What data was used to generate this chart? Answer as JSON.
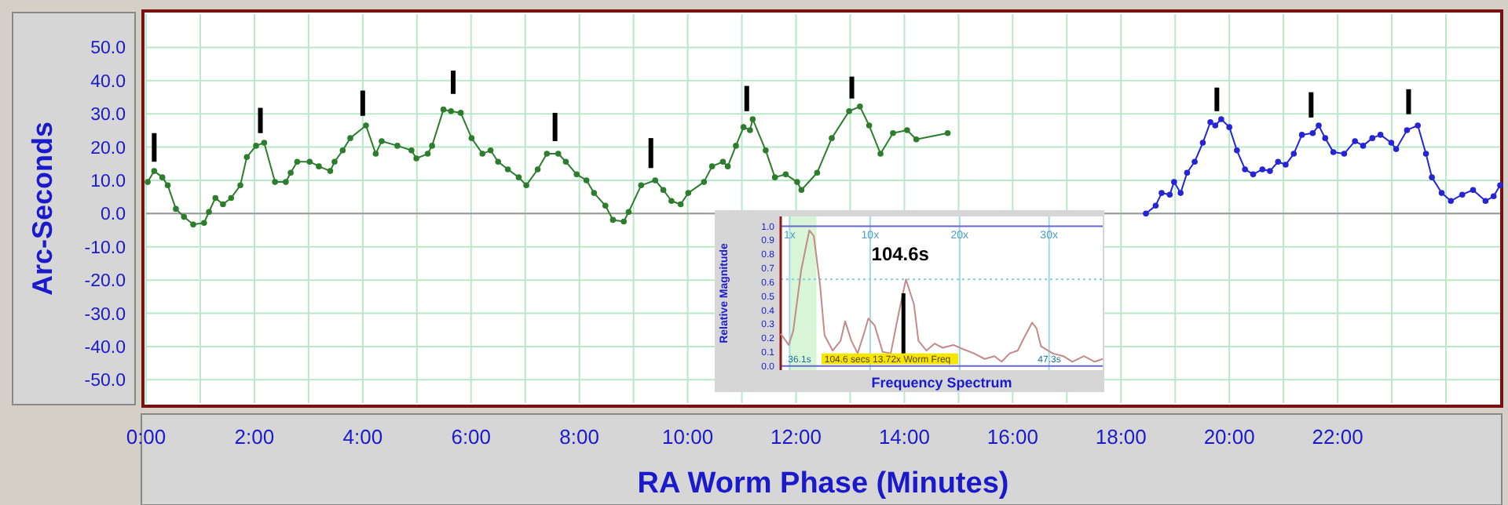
{
  "chart_data": [
    {
      "type": "line",
      "xlabel": "RA Worm Phase (Minutes)",
      "ylabel": "Arc-Seconds",
      "xlim": [
        0,
        25
      ],
      "ylim": [
        -57,
        60
      ],
      "xticks": [
        {
          "value": 0,
          "label": "0:00"
        },
        {
          "value": 1,
          "label": null
        },
        {
          "value": 2,
          "label": "2:00"
        },
        {
          "value": 3,
          "label": null
        },
        {
          "value": 4,
          "label": "4:00"
        },
        {
          "value": 5,
          "label": null
        },
        {
          "value": 6,
          "label": "6:00"
        },
        {
          "value": 7,
          "label": null
        },
        {
          "value": 8,
          "label": "8:00"
        },
        {
          "value": 9,
          "label": null
        },
        {
          "value": 10,
          "label": "10:00"
        },
        {
          "value": 11,
          "label": null
        },
        {
          "value": 12,
          "label": "12:00"
        },
        {
          "value": 13,
          "label": null
        },
        {
          "value": 14,
          "label": "14:00"
        },
        {
          "value": 15,
          "label": null
        },
        {
          "value": 16,
          "label": "16:00"
        },
        {
          "value": 17,
          "label": null
        },
        {
          "value": 18,
          "label": "18:00"
        },
        {
          "value": 19,
          "label": null
        },
        {
          "value": 20,
          "label": "20:00"
        },
        {
          "value": 21,
          "label": null
        },
        {
          "value": 22,
          "label": "22:00"
        },
        {
          "value": 23,
          "label": null
        },
        {
          "value": 24,
          "label": null
        }
      ],
      "yticks": [
        {
          "value": -50,
          "label": "-50.0"
        },
        {
          "value": -40,
          "label": "-40.0"
        },
        {
          "value": -30,
          "label": "-30.0"
        },
        {
          "value": -20,
          "label": "-20.0"
        },
        {
          "value": -10,
          "label": "-10.0"
        },
        {
          "value": 0,
          "label": "0.0"
        },
        {
          "value": 10,
          "label": "10.0"
        },
        {
          "value": 20,
          "label": "20.0"
        },
        {
          "value": 30,
          "label": "30.0"
        },
        {
          "value": 40,
          "label": "40.0"
        },
        {
          "value": 50,
          "label": "50.0"
        }
      ],
      "grid": true,
      "marker": "circle",
      "ref_lines": [
        {
          "axis": "y",
          "value": 0,
          "color": "#999999"
        }
      ],
      "series": [
        {
          "color": "#2e7d2e",
          "x": [
            0.03,
            0.15,
            0.3,
            0.4,
            0.55,
            0.7,
            0.87,
            1.07,
            1.16,
            1.28,
            1.42,
            1.57,
            1.74,
            1.86,
            2.03,
            2.18,
            2.38,
            2.58,
            2.67,
            2.79,
            3.02,
            3.19,
            3.4,
            3.48,
            3.63,
            3.77,
            4.06,
            4.24,
            4.35,
            4.64,
            4.9,
            4.99,
            5.2,
            5.28,
            5.49,
            5.63,
            5.81,
            6.01,
            6.21,
            6.36,
            6.5,
            6.68,
            6.88,
            7.02,
            7.23,
            7.4,
            7.61,
            7.75,
            7.95,
            8.13,
            8.27,
            8.48,
            8.62,
            8.82,
            8.91,
            9.14,
            9.4,
            9.55,
            9.7,
            9.87,
            10.01,
            10.3,
            10.45,
            10.65,
            10.74,
            10.89,
            11.03,
            11.15,
            11.2,
            11.44,
            11.61,
            11.81,
            12.02,
            12.1,
            12.39,
            12.66,
            12.98,
            13.18,
            13.35,
            13.56,
            13.79,
            14.05,
            14.22,
            14.8
          ],
          "values": [
            9.5,
            12.8,
            10.9,
            8.5,
            1.4,
            -1,
            -3.3,
            -2.8,
            0.5,
            4.7,
            2.8,
            4.7,
            8.5,
            17,
            20.4,
            21.3,
            9.5,
            9.5,
            12.3,
            15.6,
            15.6,
            14.2,
            12.8,
            15.6,
            19,
            22.7,
            26.5,
            18,
            21.8,
            20.4,
            19,
            16.6,
            18,
            20.4,
            31.3,
            30.8,
            30.3,
            22.7,
            18,
            19,
            15.6,
            13.3,
            10.9,
            8.5,
            13.3,
            18,
            18,
            15.6,
            11.8,
            10,
            6.2,
            2.4,
            -1.9,
            -2.4,
            0.5,
            8.5,
            10,
            7.1,
            3.8,
            2.8,
            6.2,
            9.5,
            14.2,
            15.6,
            14.2,
            20.4,
            26,
            25.1,
            28.4,
            19,
            10.9,
            11.8,
            9.5,
            7.1,
            12.3,
            22.7,
            30.8,
            32.2,
            26.5,
            18,
            24.2,
            25.1,
            22.3,
            24.2
          ]
        },
        {
          "color": "#2525d5",
          "x": [
            18.46,
            18.64,
            18.75,
            18.9,
            18.98,
            19.1,
            19.22,
            19.36,
            19.51,
            19.65,
            19.74,
            19.85,
            20.0,
            20.14,
            20.29,
            20.44,
            20.61,
            20.75,
            20.9,
            21.04,
            21.19,
            21.34,
            21.54,
            21.65,
            21.77,
            21.92,
            22.12,
            22.32,
            22.47,
            22.64,
            22.79,
            22.99,
            23.08,
            23.28,
            23.48,
            23.63,
            23.74,
            23.92,
            24.09,
            24.3,
            24.5,
            24.73,
            24.88,
            25.0
          ],
          "values": [
            0,
            2.4,
            6.2,
            5.7,
            9.5,
            6.2,
            12.3,
            15.6,
            21.3,
            27.5,
            26.5,
            28.4,
            26,
            19,
            13.3,
            11.8,
            13.3,
            12.8,
            15.6,
            14.7,
            18,
            23.7,
            24.2,
            26.5,
            22.7,
            18.5,
            18,
            21.8,
            20.4,
            22.7,
            23.7,
            21.3,
            19.4,
            25.1,
            26.5,
            18,
            10.9,
            6.2,
            3.8,
            5.7,
            7.1,
            3.8,
            5.2,
            8.5
          ]
        },
        {
          "type": "bar",
          "color": "#000000",
          "x": [
            0.15,
            2.11,
            4.0,
            5.67,
            7.55,
            9.32,
            11.09,
            13.03,
            19.77,
            21.51,
            23.31
          ],
          "base": [
            15.6,
            24.2,
            29.4,
            36,
            21.8,
            13.7,
            30.8,
            34.6,
            30.8,
            28.9,
            29.9
          ],
          "values": [
            8.6,
            7.6,
            7.6,
            7,
            8.5,
            9,
            7.6,
            6.6,
            7.1,
            7.6,
            7.5
          ]
        }
      ]
    },
    {
      "type": "line",
      "xlabel": "Frequency Spectrum",
      "ylabel": "Relative Magnitude",
      "xlim": [
        0,
        36
      ],
      "ylim": [
        -0.03,
        1.07
      ],
      "xticks": [
        {
          "value": 1,
          "label": "1x"
        },
        {
          "value": 10,
          "label": "10x"
        },
        {
          "value": 20,
          "label": "20x"
        },
        {
          "value": 30,
          "label": "30x"
        }
      ],
      "yticks": [
        {
          "value": 0,
          "label": "0.0"
        },
        {
          "value": 0.1,
          "label": "0.1"
        },
        {
          "value": 0.2,
          "label": "0.2"
        },
        {
          "value": 0.3,
          "label": "0.3"
        },
        {
          "value": 0.4,
          "label": "0.4"
        },
        {
          "value": 0.5,
          "label": "0.5"
        },
        {
          "value": 0.6,
          "label": "0.6"
        },
        {
          "value": 0.7,
          "label": "0.7"
        },
        {
          "value": 0.8,
          "label": "0.8"
        },
        {
          "value": 0.9,
          "label": "0.9"
        },
        {
          "value": 1,
          "label": "1.0"
        }
      ],
      "grid": "x",
      "marker": "none",
      "bands": [
        {
          "axis": "x",
          "from": 1,
          "to": 4,
          "color": "#d8f5d8"
        }
      ],
      "ref_lines": [
        {
          "axis": "y",
          "value": 0.62,
          "color": "#7fd0e0",
          "line_style": "dotted"
        },
        {
          "axis": "y",
          "value": 0,
          "color": "#6666cc"
        },
        {
          "axis": "y",
          "value": 1,
          "color": "#6666cc"
        }
      ],
      "annotations": [
        {
          "text": "104.6s",
          "x": 13.72,
          "y": 0.62
        },
        "36.1s",
        "104.6 secs  13.72x Worm Freq",
        "47.3s"
      ],
      "series": [
        {
          "color": "#c48a8a",
          "x": [
            0,
            0.9,
            1.4,
            2.3,
            3.2,
            3.7,
            4.4,
            4.9,
            5.8,
            6.7,
            7.2,
            7.9,
            8.6,
            9.3,
            9.8,
            10.5,
            11.4,
            12.3,
            13.2,
            14.0,
            14.9,
            15.4,
            16.3,
            17.2,
            18.1,
            19.3,
            20.4,
            21.6,
            22.8,
            23.9,
            24.7,
            25.6,
            26.5,
            27.2,
            28.1,
            28.6,
            29.1,
            30.4,
            31.6,
            32.6,
            33.9,
            35.1,
            36.0
          ],
          "values": [
            0.23,
            0.15,
            0.25,
            0.69,
            0.97,
            0.93,
            0.58,
            0.22,
            0.11,
            0.18,
            0.32,
            0.18,
            0.09,
            0.23,
            0.34,
            0.29,
            0.1,
            0.09,
            0.38,
            0.62,
            0.44,
            0.18,
            0.11,
            0.16,
            0.13,
            0.15,
            0.12,
            0.09,
            0.05,
            0.07,
            0.03,
            0.09,
            0.11,
            0.2,
            0.31,
            0.27,
            0.14,
            0.09,
            0.07,
            0.03,
            0.07,
            0.03,
            0.05
          ]
        },
        {
          "type": "bar",
          "color": "#000000",
          "x": [
            13.72
          ],
          "base": [
            0.07
          ],
          "values": [
            0.45
          ]
        }
      ]
    }
  ]
}
